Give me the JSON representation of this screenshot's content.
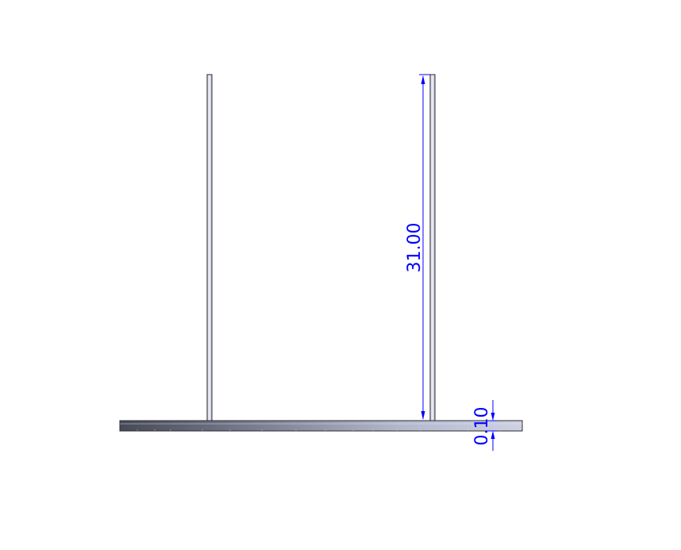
{
  "drawing": {
    "dimension_height": {
      "value": "31.00"
    },
    "dimension_thickness": {
      "value": "0.10"
    }
  },
  "colors": {
    "dimension": "#0000ff",
    "outline": "#2a2a2a",
    "plate_dark": "#4a4c5c",
    "plate_light": "#c4c8dc",
    "post_fill": "#dfe3f1"
  }
}
